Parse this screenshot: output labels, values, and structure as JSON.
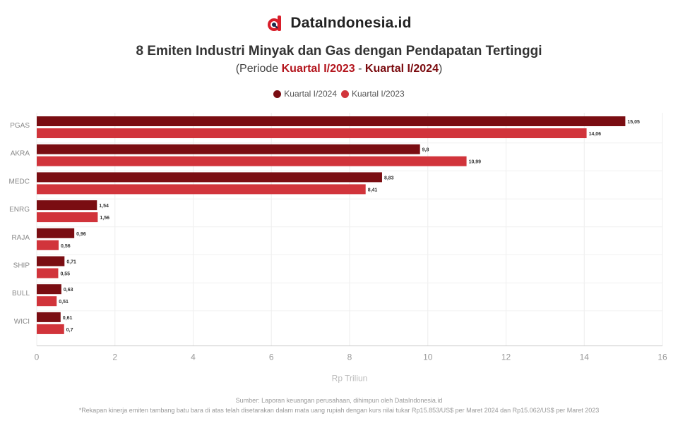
{
  "brand": {
    "name": "DataIndonesia.id",
    "accent": "#d81e2a"
  },
  "title": "8 Emiten Industri Minyak dan Gas dengan Pendapatan Tertinggi",
  "subtitle": {
    "prefix": "(Periode ",
    "from": "Kuartal I/2023",
    "sep": " - ",
    "to": "Kuartal I/2024",
    "suffix": ")"
  },
  "legend": [
    {
      "label": "Kuartal I/2024",
      "color": "#7a0d12"
    },
    {
      "label": "Kuartal I/2023",
      "color": "#d1343b"
    }
  ],
  "chart_data": {
    "type": "bar",
    "orientation": "horizontal",
    "categories": [
      "PGAS",
      "AKRA",
      "MEDC",
      "ENRG",
      "RAJA",
      "SHIP",
      "BULL",
      "WICI"
    ],
    "series": [
      {
        "name": "Kuartal I/2024",
        "color": "#7a0d12",
        "values": [
          15.05,
          9.8,
          8.83,
          1.54,
          0.96,
          0.71,
          0.63,
          0.61
        ]
      },
      {
        "name": "Kuartal I/2023",
        "color": "#d1343b",
        "values": [
          14.06,
          10.99,
          8.41,
          1.56,
          0.56,
          0.55,
          0.51,
          0.7
        ]
      }
    ],
    "value_labels": [
      [
        "15,05",
        "9,8",
        "8,83",
        "1,54",
        "0,96",
        "0,71",
        "0,63",
        "0,61"
      ],
      [
        "14,06",
        "10,99",
        "8,41",
        "1,56",
        "0,56",
        "0,55",
        "0,51",
        "0,7"
      ]
    ],
    "xlim": [
      0,
      16
    ],
    "xticks": [
      0,
      2,
      4,
      6,
      8,
      10,
      12,
      14,
      16
    ],
    "xlabel": "Rp Triliun",
    "grid": true,
    "legend_position": "top-center"
  },
  "footer": {
    "source": "Sumber: Laporan keuangan perusahaan, dihimpun oleh DataIndonesia.id",
    "note": "*Rekapan kinerja emiten tambang batu bara di atas telah disetarakan dalam mata uang rupiah dengan kurs nilai tukar Rp15.853/US$ per Maret 2024 dan Rp15.062/US$ per Maret 2023"
  }
}
